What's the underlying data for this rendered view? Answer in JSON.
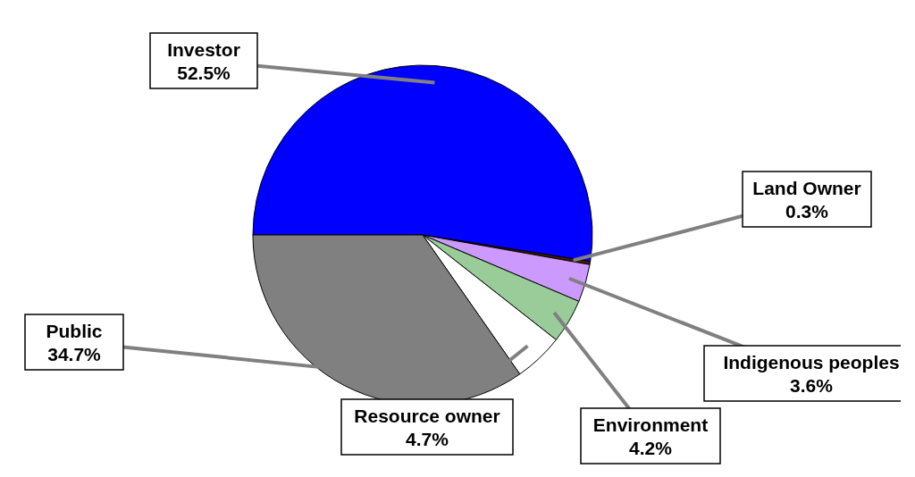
{
  "chart_data": {
    "type": "pie",
    "categories": [
      "Investor",
      "Land Owner",
      "Indigenous peoples",
      "Environment",
      "Resource owner",
      "Public"
    ],
    "values": [
      52.5,
      0.3,
      3.6,
      4.2,
      4.7,
      34.7
    ],
    "value_labels": [
      "52.5%",
      "0.3%",
      "3.6%",
      "4.2%",
      "4.7%",
      "34.7%"
    ],
    "colors": [
      "#0000ff",
      "#4d1a00",
      "#cc99ff",
      "#99cc99",
      "#ffffff",
      "#808080"
    ]
  }
}
